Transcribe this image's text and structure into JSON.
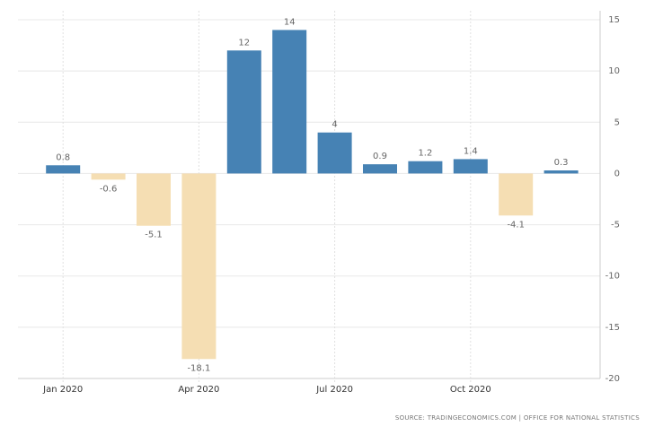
{
  "chart_data": {
    "type": "bar",
    "categories": [
      "Jan 2020",
      null,
      null,
      "Apr 2020",
      null,
      null,
      "Jul 2020",
      null,
      null,
      "Oct 2020",
      null,
      null
    ],
    "values": [
      0.8,
      -0.6,
      -5.1,
      -18.1,
      12,
      14,
      4,
      0.9,
      1.2,
      1.4,
      -4.1,
      0.3
    ],
    "positive_color": "#4682b4",
    "negative_color": "#f5deb3",
    "ylim": [
      -20,
      15
    ],
    "yticks": [
      -20,
      -15,
      -10,
      -5,
      0,
      5,
      10,
      15
    ],
    "grid": true,
    "source": "SOURCE: TRADINGECONOMICS.COM | OFFICE FOR NATIONAL STATISTICS"
  }
}
